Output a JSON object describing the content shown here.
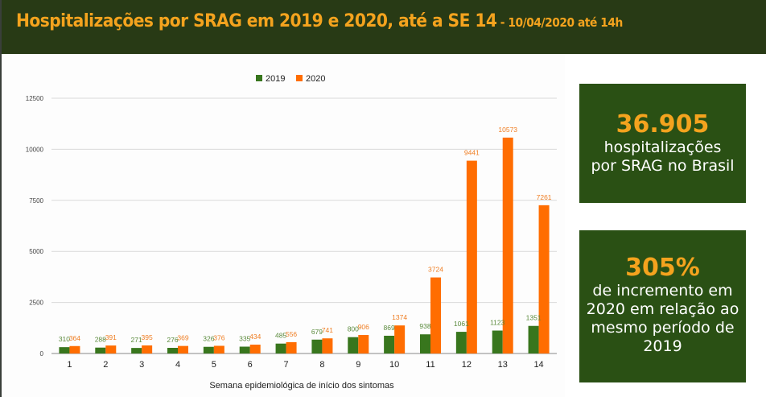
{
  "header": {
    "title": "Hospitalizações por SRAG em 2019 e 2020, até a SE 14",
    "subtitle": " - 10/04/2020 até 14h"
  },
  "stats": [
    {
      "value": "36.905",
      "text_lines": [
        "hospitalizações",
        "por SRAG no Brasil"
      ]
    },
    {
      "value": "305%",
      "text_lines": [
        "de incremento em",
        "2020 em relação ao",
        "mesmo período de",
        "2019"
      ]
    }
  ],
  "colors": {
    "series_2019": "#38761d",
    "series_2020": "#ff6d01",
    "header_bg": "#283a15",
    "stat_bg": "#2a5014",
    "accent": "#f4a31e"
  },
  "chart_data": {
    "type": "bar",
    "title": "",
    "xlabel": "Semana epidemiológica de início dos sintomas",
    "ylabel": "",
    "ylim": [
      0,
      12500
    ],
    "yticks": [
      0,
      2500,
      5000,
      7500,
      10000,
      12500
    ],
    "grid": true,
    "legend": "top-center",
    "categories": [
      "1",
      "2",
      "3",
      "4",
      "5",
      "6",
      "7",
      "8",
      "9",
      "10",
      "11",
      "12",
      "13",
      "14"
    ],
    "series": [
      {
        "name": "2019",
        "color": "#38761d",
        "values": [
          310,
          288,
          271,
          276,
          326,
          335,
          485,
          679,
          800,
          869,
          938,
          1061,
          1123,
          1351
        ]
      },
      {
        "name": "2020",
        "color": "#ff6d01",
        "values": [
          364,
          391,
          395,
          369,
          376,
          434,
          556,
          741,
          906,
          1374,
          3724,
          9441,
          10573,
          7261
        ]
      }
    ]
  }
}
